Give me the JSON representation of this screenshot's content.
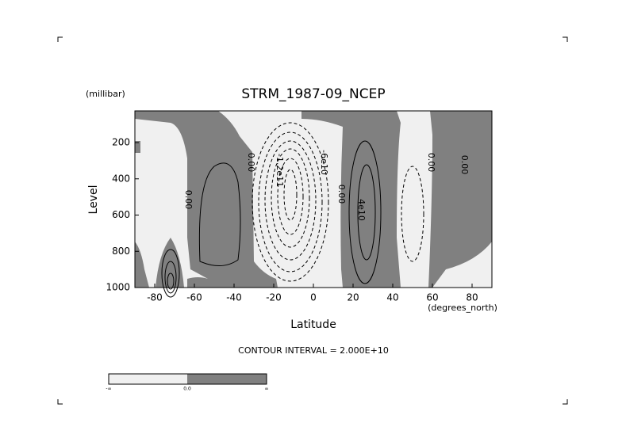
{
  "chart_data": {
    "type": "contour",
    "title": "STRM_1987-09_NCEP",
    "y_units": "(millibar)",
    "y_label": "Level",
    "x_label": "Latitude",
    "x_units": "(degrees_north)",
    "subtitle": "CONTOUR INTERVAL = 2.000E+10",
    "xlim": [
      -90,
      90
    ],
    "xticks": [
      -80,
      -60,
      -40,
      -20,
      0,
      20,
      40,
      60,
      80
    ],
    "ylim": [
      1000,
      25
    ],
    "yticks": [
      200,
      400,
      600,
      800,
      1000
    ],
    "contour_labels": [
      "0.00",
      "0.00",
      "-1.2e11",
      "-6e10",
      "0.00",
      "4e10",
      "0.00",
      "0.00"
    ],
    "colorbar_labels": [
      "-∞",
      "0.0",
      "∞"
    ],
    "colors": [
      "#f0f0f0",
      "#808080"
    ]
  }
}
